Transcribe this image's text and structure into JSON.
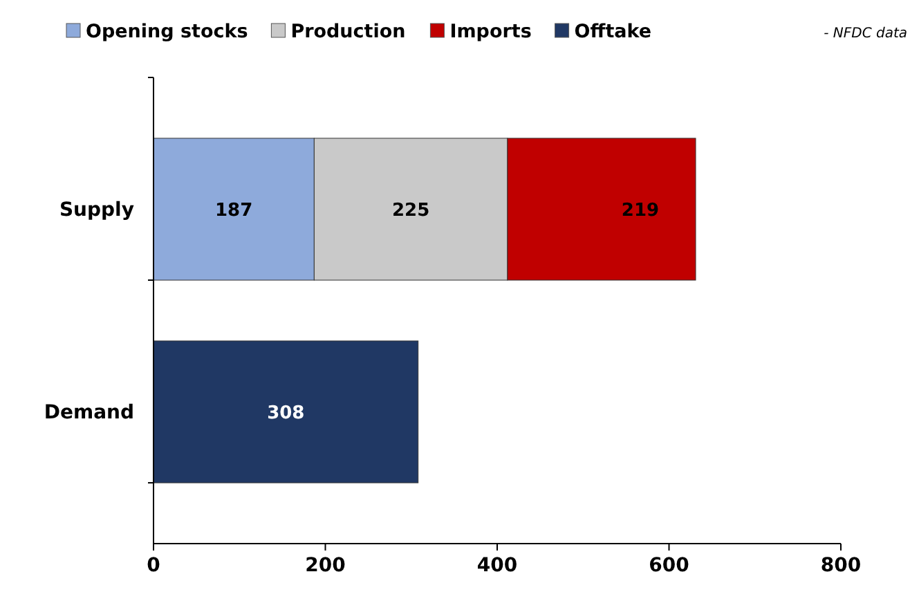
{
  "chart_data": {
    "type": "bar",
    "orientation": "horizontal",
    "stacked": true,
    "categories": [
      "Supply",
      "Demand"
    ],
    "series": [
      {
        "name": "Opening stocks",
        "color": "#8eaadb",
        "values": [
          187,
          null
        ]
      },
      {
        "name": "Production",
        "color": "#c9c9c9",
        "values": [
          225,
          null
        ]
      },
      {
        "name": "Imports",
        "color": "#c00000",
        "values": [
          219,
          null
        ]
      },
      {
        "name": "Offtake",
        "color": "#203864",
        "values": [
          null,
          308
        ]
      }
    ],
    "xlim": [
      0,
      800
    ],
    "xticks": [
      0,
      200,
      400,
      600,
      800
    ],
    "data_labels": true,
    "legend": "top",
    "grid": false,
    "annotations": [
      "- NFDC data"
    ]
  }
}
